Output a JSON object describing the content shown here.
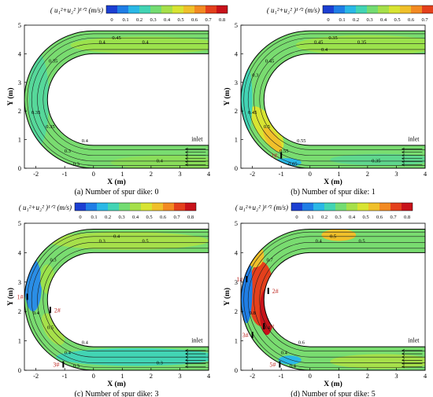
{
  "colorbar": {
    "ticks": [
      "0",
      "0.1",
      "0.2",
      "0.3",
      "0.4",
      "0.5",
      "0.6",
      "0.7",
      "0.8"
    ],
    "colors": [
      "#1c3fd2",
      "#1f7ee6",
      "#2ab8e6",
      "#42d4b4",
      "#74dc72",
      "#a6e04a",
      "#d8e432",
      "#f0c02a",
      "#f38a22",
      "#e4401c",
      "#c8121a"
    ]
  },
  "chart_data": [
    {
      "type": "heatmap",
      "title": "( u₁²+u₂² )¹ᐟ² (m/s)",
      "caption": "(a) Number of spur dike: 0",
      "xlabel": "X (m)",
      "ylabel": "Y (m)",
      "x_ticks": [
        "-2",
        "-1",
        "0",
        "1",
        "2",
        "3",
        "4"
      ],
      "y_ticks": [
        "0",
        "1",
        "2",
        "3",
        "4",
        "5"
      ],
      "xlim": [
        -2.4,
        4
      ],
      "ylim": [
        0,
        5
      ],
      "inlet_label": "inlet",
      "spur_dike_labels": [],
      "contour_labels": [
        "0.45",
        "0.4",
        "0.4",
        "0.35",
        "0.35",
        "0.35",
        "0.4",
        "0.3",
        "0.3",
        "0.4"
      ]
    },
    {
      "type": "heatmap",
      "title": "( u₁²+u₂² )¹ᐟ² (m/s)",
      "caption": "(b) Number of spur dike: 1",
      "xlabel": "X (m)",
      "ylabel": "Y (m)",
      "x_ticks": [
        "-2",
        "-1",
        "0",
        "1",
        "2",
        "3",
        "4"
      ],
      "y_ticks": [
        "0",
        "1",
        "2",
        "3",
        "4",
        "5"
      ],
      "xlim": [
        -2.4,
        4
      ],
      "ylim": [
        0,
        5
      ],
      "inlet_label": "inlet",
      "spur_dike_labels": [
        "1#"
      ],
      "contour_labels": [
        "0.35",
        "0.45",
        "0.35",
        "0.45",
        "0.45",
        "0.5",
        "0.55",
        "0.55",
        "0.65",
        "0.35",
        "0.4",
        "0.3"
      ]
    },
    {
      "type": "heatmap",
      "title": "( u₁²+u₂² )¹ᐟ² (m/s)",
      "caption": "(c) Number of spur dike: 3",
      "xlabel": "X (m)",
      "ylabel": "Y (m)",
      "x_ticks": [
        "-2",
        "-1",
        "0",
        "1",
        "2",
        "3",
        "4"
      ],
      "y_ticks": [
        "0",
        "1",
        "2",
        "3",
        "4",
        "5"
      ],
      "xlim": [
        -2.4,
        4
      ],
      "ylim": [
        0,
        5
      ],
      "inlet_label": "inlet",
      "spur_dike_labels": [
        "3#",
        "2#",
        "1#"
      ],
      "contour_labels": [
        "0.4",
        "0.3",
        "0.5",
        "0.3",
        "0.4",
        "0.5",
        "0.4",
        "0.4",
        "0.3",
        "0.3"
      ]
    },
    {
      "type": "heatmap",
      "title": "( u₁²+u₂² )¹ᐟ² (m/s)",
      "caption": "(d) Number of spur dike: 5",
      "xlabel": "X (m)",
      "ylabel": "Y (m)",
      "x_ticks": [
        "-2",
        "-1",
        "0",
        "1",
        "2",
        "3",
        "4"
      ],
      "y_ticks": [
        "0",
        "1",
        "2",
        "3",
        "4",
        "5"
      ],
      "xlim": [
        -2.4,
        4
      ],
      "ylim": [
        0,
        5
      ],
      "inlet_label": "inlet",
      "spur_dike_labels": [
        "5#",
        "4#",
        "3#",
        "2#",
        "1#"
      ],
      "contour_labels": [
        "0.5",
        "0.4",
        "0.5",
        "0.7",
        "0.8",
        "0.4",
        "0.6",
        "0.4",
        "0.4"
      ]
    }
  ]
}
